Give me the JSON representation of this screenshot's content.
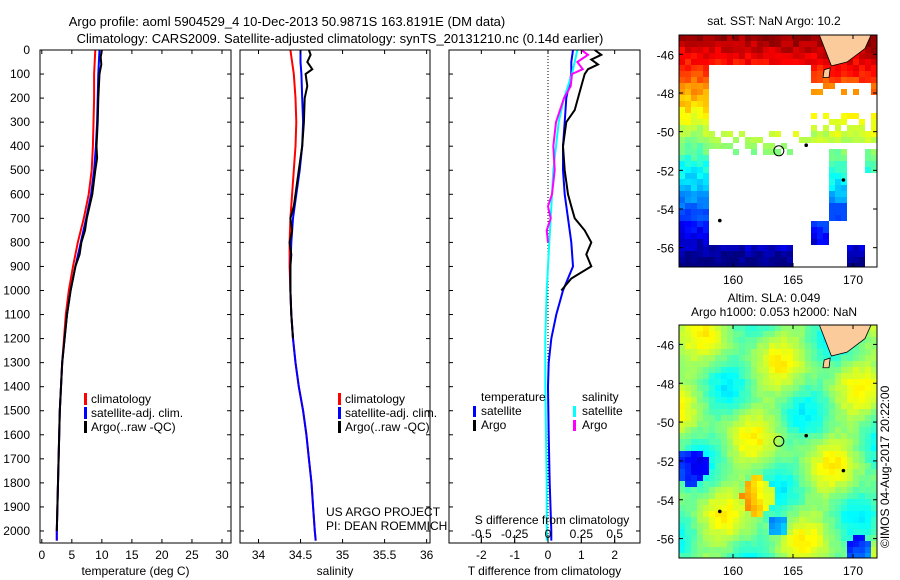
{
  "chart_data": {
    "type": "line",
    "title": "Argo profile: aoml 5904529_4 10-Dec-2013 50.9871S 163.8191E (DM data)",
    "subtitle": "Climatology: CARS2009. Satellite-adjusted climatology: synTS_20131210.nc (0.14d earlier)",
    "depth_axis": {
      "ylim": [
        0,
        2050
      ],
      "ticks": [
        0,
        100,
        200,
        300,
        400,
        500,
        600,
        700,
        800,
        900,
        1000,
        1100,
        1200,
        1300,
        1400,
        1500,
        1600,
        1700,
        1800,
        1900,
        2000
      ],
      "reversed": true
    },
    "panels": [
      {
        "name": "temperature",
        "xlabel": "temperature (deg C)",
        "xlim": [
          -0.3,
          31.5
        ],
        "xticks": [
          0,
          5,
          10,
          15,
          20,
          25,
          30
        ],
        "xticklabels": [
          "0",
          "5",
          "10",
          "15",
          "20",
          "25",
          "30"
        ],
        "legend": [
          "climatology",
          "satellite-adj. clim.",
          "Argo(..raw -QC)"
        ],
        "series": [
          {
            "name": "climatology",
            "color": "#ff0000",
            "depth": [
              0,
              50,
              100,
              200,
              300,
              400,
              500,
              600,
              700,
              800,
              900,
              1000,
              1100,
              1200,
              1300,
              1400,
              1500,
              1600,
              1700,
              1800,
              1900,
              2000,
              2040
            ],
            "values": [
              8.9,
              8.8,
              8.7,
              8.7,
              8.6,
              8.5,
              8.3,
              7.8,
              7.0,
              6.0,
              5.2,
              4.5,
              4.0,
              3.7,
              3.4,
              3.2,
              3.0,
              2.9,
              2.8,
              2.7,
              2.6,
              2.5,
              2.5
            ]
          },
          {
            "name": "satellite-adj. clim.",
            "color": "#0000ff",
            "depth": [
              0,
              50,
              100,
              200,
              300,
              400,
              500,
              600,
              700,
              800,
              900,
              1000,
              1100,
              1200,
              1300,
              1400,
              1500,
              1600,
              1700,
              1800,
              1900,
              2000,
              2040
            ],
            "values": [
              9.6,
              9.5,
              9.4,
              9.3,
              9.2,
              9.0,
              8.7,
              8.2,
              7.4,
              6.5,
              5.6,
              4.8,
              4.2,
              3.8,
              3.4,
              3.2,
              3.0,
              2.9,
              2.8,
              2.7,
              2.6,
              2.5,
              2.5
            ]
          },
          {
            "name": "Argo(..raw -QC)",
            "color": "#000000",
            "depth": [
              0,
              30,
              60,
              100,
              150,
              200,
              300,
              400,
              450,
              500,
              600,
              700,
              750,
              800,
              850,
              900,
              1000,
              1100,
              1200,
              1300,
              1400,
              1500,
              1600,
              1700,
              1800,
              1900,
              2000
            ],
            "values": [
              10.0,
              9.8,
              9.9,
              9.6,
              9.5,
              9.4,
              9.3,
              9.1,
              9.2,
              8.9,
              8.4,
              7.5,
              7.2,
              6.6,
              6.3,
              5.6,
              4.8,
              4.2,
              3.8,
              3.4,
              3.2,
              3.0,
              2.9,
              2.8,
              2.7,
              2.6,
              2.5
            ]
          }
        ]
      },
      {
        "name": "salinity",
        "xlabel": "salinity",
        "xlim": [
          33.78,
          36.04
        ],
        "xticks": [
          34,
          34.5,
          35,
          35.5,
          36
        ],
        "xticklabels": [
          "34",
          "34.5",
          "35",
          "35.5",
          "36"
        ],
        "legend": [
          "climatology",
          "satellite-adj. clim.",
          "Argo(..raw -QC)"
        ],
        "series": [
          {
            "name": "climatology",
            "color": "#ff0000",
            "depth": [
              0,
              50,
              100,
              200,
              300,
              400,
              500,
              600,
              700,
              800,
              900,
              1000,
              1100,
              1200,
              1300,
              1400,
              1500,
              1600,
              1700,
              1800,
              1900,
              2000,
              2040
            ],
            "values": [
              34.38,
              34.4,
              34.42,
              34.44,
              34.45,
              34.44,
              34.42,
              34.4,
              34.38,
              34.37,
              34.37,
              34.38,
              34.39,
              34.41,
              34.44,
              34.48,
              34.53,
              34.57,
              34.6,
              34.63,
              34.65,
              34.67,
              34.68
            ]
          },
          {
            "name": "satellite-adj. clim.",
            "color": "#0000ff",
            "depth": [
              0,
              50,
              100,
              200,
              300,
              400,
              500,
              600,
              700,
              800,
              900,
              1000,
              1100,
              1200,
              1300,
              1400,
              1500,
              1600,
              1700,
              1800,
              1900,
              2000,
              2040
            ],
            "values": [
              34.5,
              34.5,
              34.51,
              34.52,
              34.53,
              34.52,
              34.49,
              34.45,
              34.41,
              34.39,
              34.38,
              34.38,
              34.39,
              34.41,
              34.44,
              34.48,
              34.53,
              34.57,
              34.6,
              34.63,
              34.65,
              34.67,
              34.68
            ]
          },
          {
            "name": "Argo(..raw -QC)",
            "color": "#000000",
            "depth": [
              0,
              20,
              50,
              80,
              100,
              150,
              200,
              300,
              400,
              500,
              600,
              650,
              700,
              750,
              800,
              850,
              900,
              1000,
              1100,
              1200
            ],
            "values": [
              34.6,
              34.62,
              34.58,
              34.64,
              34.56,
              34.58,
              34.55,
              34.54,
              34.52,
              34.48,
              34.44,
              34.42,
              34.38,
              34.4,
              34.37,
              34.39,
              34.38,
              34.38,
              34.39,
              34.41
            ]
          }
        ]
      },
      {
        "name": "difference",
        "xlabel": "T difference from climatology",
        "xlabel2": "S difference from climatology",
        "xlim": [
          -2.97,
          2.76
        ],
        "xticks": [
          -2,
          -1,
          0,
          1,
          2
        ],
        "xticklabels": [
          "-2",
          "-1",
          "0",
          "1",
          "2"
        ],
        "xticks2_T_units": [
          -2,
          -1,
          0,
          1,
          2
        ],
        "xticklabels2": [
          "-0.5",
          "-0.25",
          "0",
          "0.25",
          "0.5"
        ],
        "s_to_t_factor": 4,
        "legend_temperature_title": "temperature",
        "legend_salinity_title": "salinity",
        "legend": [
          "satellite",
          "Argo",
          "satellite",
          "Argo"
        ],
        "series": [
          {
            "name": "T satellite",
            "color": "#0000ff",
            "depth": [
              0,
              50,
              100,
              200,
              300,
              400,
              500,
              600,
              700,
              800,
              900,
              1000,
              1100,
              1200,
              1300,
              1400,
              1600,
              1800,
              2000,
              2040
            ],
            "values": [
              0.75,
              0.7,
              0.7,
              0.55,
              0.5,
              0.45,
              0.45,
              0.5,
              0.6,
              0.7,
              0.75,
              0.45,
              0.25,
              0.1,
              0.02,
              0.0,
              0.02,
              0.05,
              0.1,
              0.1
            ]
          },
          {
            "name": "T Argo",
            "color": "#000000",
            "depth": [
              0,
              20,
              40,
              60,
              80,
              100,
              150,
              200,
              250,
              300,
              400,
              500,
              600,
              650,
              700,
              750,
              800,
              850,
              900,
              950,
              1000
            ],
            "values": [
              1.4,
              1.6,
              1.3,
              1.5,
              1.2,
              1.1,
              1.0,
              0.9,
              0.8,
              0.55,
              0.45,
              0.5,
              0.6,
              0.7,
              0.8,
              1.1,
              1.3,
              1.15,
              1.3,
              0.7,
              0.4
            ]
          },
          {
            "name": "S satellite",
            "color": "#00ffff",
            "depth": [
              0,
              50,
              100,
              200,
              300,
              400,
              500,
              600,
              700,
              800,
              900,
              1000,
              1200,
              1400,
              1600,
              1800,
              2000,
              2040
            ],
            "values": [
              0.22,
              0.2,
              0.18,
              0.12,
              0.08,
              0.06,
              0.04,
              0.03,
              0.02,
              0.01,
              0.0,
              -0.01,
              -0.02,
              -0.02,
              -0.015,
              -0.01,
              -0.01,
              -0.01
            ]
          },
          {
            "name": "S Argo",
            "color": "#ff00ff",
            "depth": [
              0,
              20,
              50,
              80,
              100,
              150,
              200,
              300,
              400,
              500,
              600,
              650,
              700,
              750,
              800
            ],
            "values": [
              0.25,
              0.3,
              0.22,
              0.26,
              0.18,
              0.17,
              0.12,
              0.06,
              0.04,
              0.05,
              0.03,
              0.0,
              0.02,
              -0.01,
              0.0
            ]
          }
        ]
      }
    ],
    "maps": [
      {
        "title": "sat. SST: NaN Argo: 10.2",
        "lon_ticks": [
          160,
          165,
          170
        ],
        "lat_ticks": [
          -46,
          -48,
          -50,
          -52,
          -54,
          -56
        ],
        "lon_range": [
          155.5,
          172
        ],
        "lat_range": [
          -57,
          -45
        ],
        "float_lon": 163.82,
        "float_lat": -50.99
      },
      {
        "title_line1": "Altim. SLA: 0.049",
        "title_line2": "Argo h1000: 0.053 h2000: NaN",
        "lon_ticks": [
          160,
          165,
          170
        ],
        "lat_ticks": [
          -46,
          -48,
          -50,
          -52,
          -54,
          -56
        ],
        "lon_range": [
          155.5,
          172
        ],
        "lat_range": [
          -57,
          -45
        ],
        "float_lon": 163.82,
        "float_lat": -50.99
      }
    ],
    "annotations": {
      "project": "US ARGO PROJECT",
      "pi": "PI: DEAN ROEMMICH",
      "credit": "©IMOS 04-Aug-2017 20:22:00"
    }
  }
}
